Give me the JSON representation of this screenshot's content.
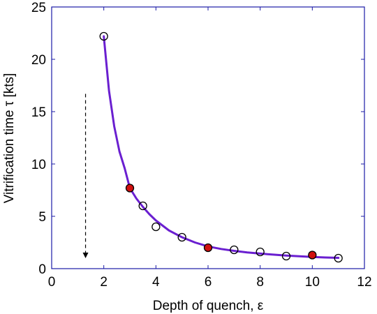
{
  "chart_data": {
    "type": "scatter",
    "xlabel": "Depth of quench, ε",
    "ylabel": "Vitrification time τ [kts]",
    "xlim": [
      0,
      12
    ],
    "ylim": [
      0,
      25
    ],
    "xticks": [
      "0",
      "2",
      "4",
      "6",
      "8",
      "10",
      "12"
    ],
    "yticks": [
      "0",
      "5",
      "10",
      "15",
      "20",
      "25"
    ],
    "grid": false,
    "series": [
      {
        "kind": "open-circles",
        "points": [
          [
            2,
            22.2
          ],
          [
            3.5,
            6.0
          ],
          [
            4,
            4.0
          ],
          [
            5,
            3.0
          ],
          [
            7,
            1.8
          ],
          [
            8,
            1.6
          ],
          [
            9,
            1.2
          ],
          [
            11,
            1.0
          ]
        ]
      },
      {
        "kind": "filled-circles",
        "points": [
          [
            3,
            7.7
          ],
          [
            6,
            2.0
          ],
          [
            10,
            1.3
          ]
        ]
      },
      {
        "kind": "fit-curve",
        "points": [
          [
            2,
            22.2
          ],
          [
            2.2,
            17.0
          ],
          [
            2.4,
            13.6
          ],
          [
            2.6,
            11.2
          ],
          [
            2.8,
            9.6
          ],
          [
            3,
            7.7
          ],
          [
            3.25,
            6.7
          ],
          [
            3.5,
            5.9
          ],
          [
            3.75,
            5.2
          ],
          [
            4,
            4.6
          ],
          [
            4.5,
            3.65
          ],
          [
            5,
            3.0
          ],
          [
            5.5,
            2.5
          ],
          [
            6,
            2.12
          ],
          [
            6.5,
            1.88
          ],
          [
            7,
            1.7
          ],
          [
            7.5,
            1.55
          ],
          [
            8,
            1.44
          ],
          [
            8.5,
            1.34
          ],
          [
            9,
            1.25
          ],
          [
            9.5,
            1.18
          ],
          [
            10,
            1.12
          ],
          [
            10.5,
            1.07
          ],
          [
            11,
            1.03
          ]
        ]
      }
    ],
    "annotations": [
      {
        "type": "dashed-arrow",
        "x": 1.3,
        "y_from": 16.7,
        "y_to": 1.0
      }
    ],
    "colors": {
      "axis": "#1a1aa6",
      "curve": "#6a1fd0",
      "filled_marker": "#d01010",
      "marker_edge": "#000000"
    }
  }
}
